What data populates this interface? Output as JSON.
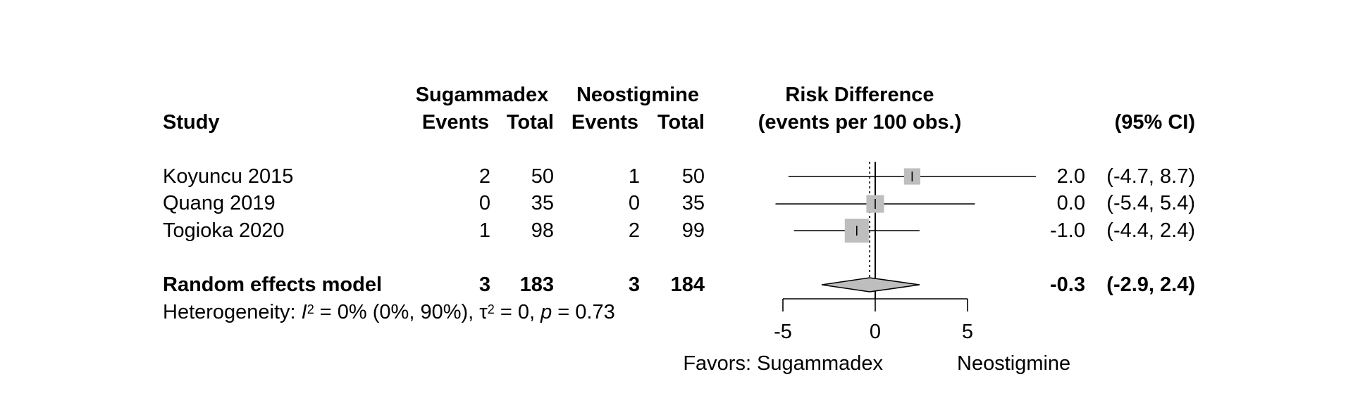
{
  "headers": {
    "study": "Study",
    "group1": "Sugammadex",
    "group2": "Neostigmine",
    "events": "Events",
    "total": "Total",
    "effect_line1": "Risk Difference",
    "effect_line2": "(events per 100 obs.)",
    "ci": "(95% CI)"
  },
  "studies": [
    {
      "name": "Koyuncu 2015",
      "e1": "2",
      "n1": "50",
      "e2": "1",
      "n2": "50",
      "est": "2.0",
      "ci": "(-4.7, 8.7)"
    },
    {
      "name": "Quang 2019",
      "e1": "0",
      "n1": "35",
      "e2": "0",
      "n2": "35",
      "est": "0.0",
      "ci": "(-5.4, 5.4)"
    },
    {
      "name": "Togioka 2020",
      "e1": "1",
      "n1": "98",
      "e2": "2",
      "n2": "99",
      "est": "-1.0",
      "ci": "(-4.4, 2.4)"
    }
  ],
  "pooled": {
    "name": "Random effects model",
    "e1": "3",
    "n1": "183",
    "e2": "3",
    "n2": "184",
    "est": "-0.3",
    "ci": "(-2.9, 2.4)"
  },
  "heterogeneity": {
    "prefix": "Heterogeneity: ",
    "i2_symbol": "I",
    "i2_sup": "2",
    "i2_value": " = 0% (0%, 90%), ",
    "tau_symbol": "τ",
    "tau_sup": "2",
    "tau_value": " = 0, ",
    "p_symbol": "p",
    "p_value": " = 0.73"
  },
  "axis_labels": {
    "left": "Favors: Sugammadex",
    "right": "Neostigmine"
  },
  "chart_data": {
    "type": "forest",
    "xlim": [
      -5,
      5
    ],
    "ticks": [
      -5,
      0,
      5
    ],
    "null_value": 0,
    "pooled_dotted_line": -0.3,
    "points": [
      {
        "study": "Koyuncu 2015",
        "estimate": 2.0,
        "lower": -4.7,
        "upper": 8.7,
        "weight": 0.16
      },
      {
        "study": "Quang 2019",
        "estimate": 0.0,
        "lower": -5.4,
        "upper": 5.4,
        "weight": 0.22
      },
      {
        "study": "Togioka 2020",
        "estimate": -1.0,
        "lower": -4.4,
        "upper": 2.4,
        "weight": 0.62
      }
    ],
    "pooled": {
      "estimate": -0.3,
      "lower": -2.9,
      "upper": 2.4
    },
    "marker_color": "#bebebe"
  }
}
